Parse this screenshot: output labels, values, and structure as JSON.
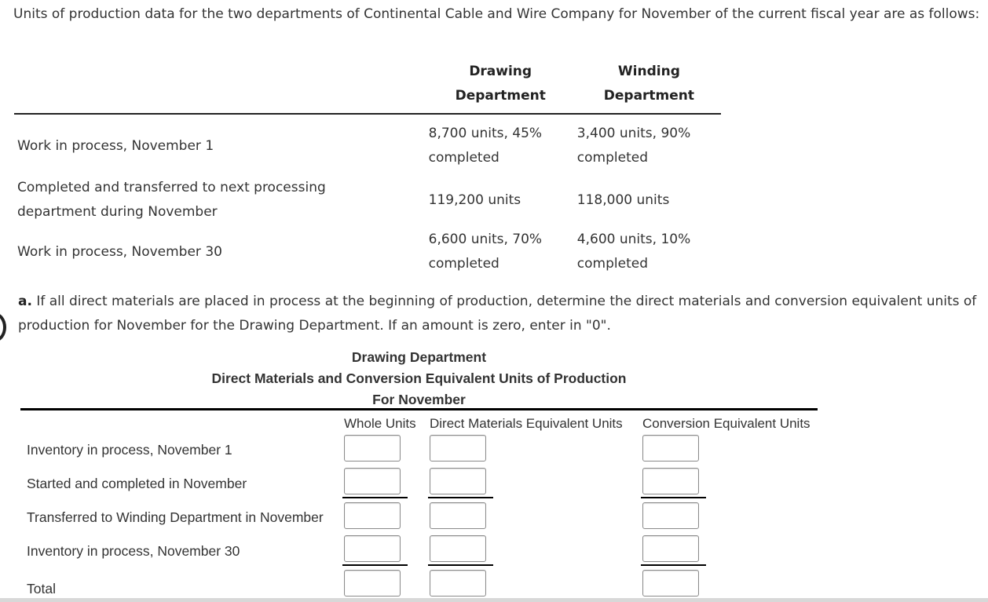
{
  "intro_text": "Units of production data for the two departments of Continental Cable and Wire Company for November of the current fiscal year are as follows:",
  "data_table": {
    "headers": [
      "",
      "Drawing\nDepartment",
      "Winding\nDepartment"
    ],
    "rows": [
      {
        "label": "Work in process, November 1",
        "drawing": "8,700 units, 45% completed",
        "winding": "3,400 units, 90% completed"
      },
      {
        "label": "Completed and transferred to next processing department during November",
        "drawing": "119,200 units",
        "winding": "118,000 units"
      },
      {
        "label": "Work in process, November 30",
        "drawing": "6,600 units, 70% completed",
        "winding": "4,600 units, 10% completed"
      }
    ]
  },
  "question": {
    "letter": "a.",
    "text": "If all direct materials are placed in process at the beginning of production, determine the direct materials and conversion equivalent units of production for November for the Drawing Department. If an amount is zero, enter in \"0\"."
  },
  "worksheet": {
    "title_lines": [
      "Drawing Department",
      "Direct Materials and Conversion Equivalent Units of Production",
      "For November"
    ],
    "columns": [
      "Whole Units",
      "Direct Materials Equivalent Units",
      "Conversion Equivalent Units"
    ],
    "rows": [
      {
        "label": "Inventory in process, November 1",
        "values": [
          "",
          "",
          ""
        ]
      },
      {
        "label": "Started and completed in November",
        "values": [
          "",
          "",
          ""
        ]
      },
      {
        "label": "Transferred to Winding Department in November",
        "values": [
          "",
          "",
          ""
        ]
      },
      {
        "label": "Inventory in process, November 30",
        "values": [
          "",
          "",
          ""
        ]
      },
      {
        "label": "Total",
        "values": [
          "",
          "",
          ""
        ]
      }
    ]
  }
}
